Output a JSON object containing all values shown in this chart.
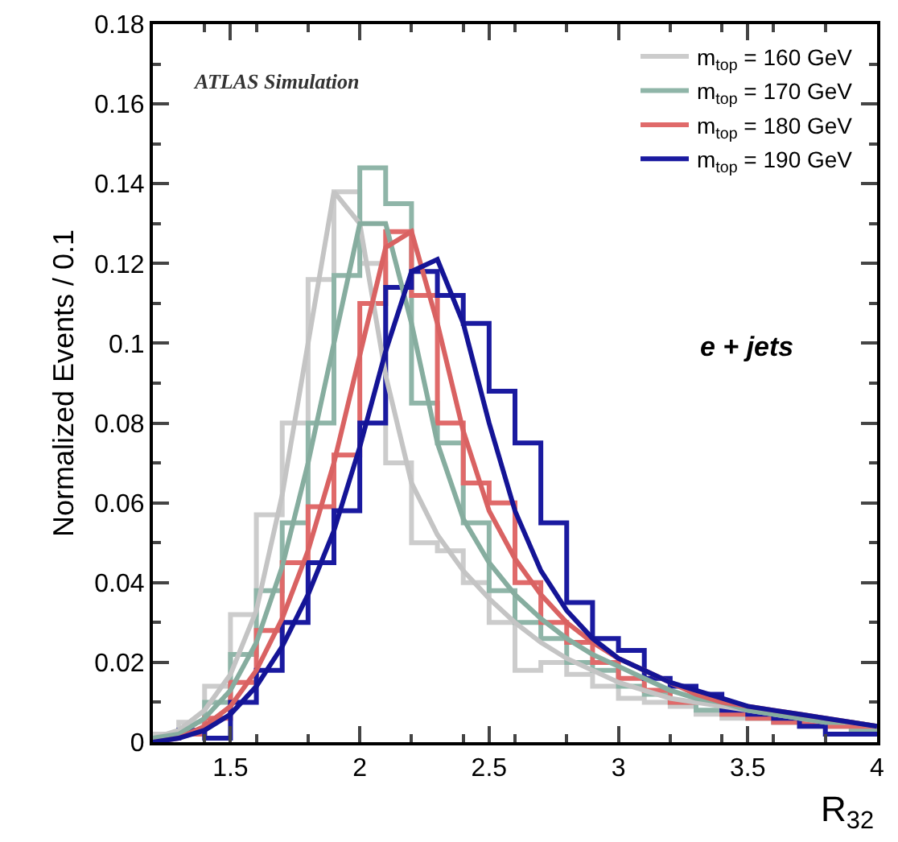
{
  "chart_data": {
    "type": "histogram",
    "xlabel": "R$_{32}$",
    "ylabel": "Normalized Events / 0.1",
    "annotations": [
      "ATLAS Simulation",
      "e + jets"
    ],
    "bins": [
      1.2,
      1.3,
      1.4,
      1.5,
      1.6,
      1.7,
      1.8,
      1.9,
      2.0,
      2.1,
      2.2,
      2.3,
      2.4,
      2.5,
      2.6,
      2.7,
      2.8,
      2.9,
      3.0,
      3.1,
      3.2,
      3.3,
      3.4,
      3.5,
      3.6,
      3.7,
      3.8,
      3.9,
      4.0
    ],
    "xlim": [
      1.2,
      4
    ],
    "xticks": [
      1.5,
      2,
      2.5,
      3,
      3.5,
      4
    ],
    "ylim": [
      0,
      0.18
    ],
    "yticks": [
      0,
      0.02,
      0.04,
      0.06,
      0.08,
      0.1,
      0.12,
      0.14,
      0.16,
      0.18
    ],
    "legend": "top right",
    "marker": "none",
    "line_style": "solid",
    "series": [
      {
        "name": "m$_{top}$ = 160 GeV",
        "color": "#cccccc",
        "values": [
          0.002,
          0.005,
          0.014,
          0.032,
          0.057,
          0.08,
          0.116,
          0.138,
          0.12,
          0.07,
          0.05,
          0.048,
          0.04,
          0.03,
          0.018,
          0.02,
          0.017,
          0.014,
          0.011,
          0.01,
          0.009,
          0.007,
          0.006,
          0.006,
          0.005,
          0.004,
          0.004,
          0.003
        ]
      },
      {
        "name": "m$_{top}$ = 170 GeV",
        "color": "#8fb5a8",
        "values": [
          0.001,
          0.003,
          0.01,
          0.022,
          0.038,
          0.055,
          0.08,
          0.117,
          0.144,
          0.135,
          0.085,
          0.075,
          0.055,
          0.038,
          0.03,
          0.026,
          0.02,
          0.018,
          0.014,
          0.012,
          0.01,
          0.008,
          0.007,
          0.006,
          0.005,
          0.005,
          0.004,
          0.003
        ]
      },
      {
        "name": "m$_{top}$ = 180 GeV",
        "color": "#e06a6a",
        "values": [
          0.001,
          0.002,
          0.006,
          0.015,
          0.028,
          0.045,
          0.059,
          0.072,
          0.11,
          0.128,
          0.112,
          0.08,
          0.065,
          0.06,
          0.04,
          0.03,
          0.025,
          0.02,
          0.016,
          0.013,
          0.01,
          0.01,
          0.007,
          0.006,
          0.005,
          0.005,
          0.004,
          0.004
        ]
      },
      {
        "name": "m$_{top}$ = 190 GeV",
        "color": "#1a1aa0",
        "values": [
          0.001,
          0.003,
          0.001,
          0.01,
          0.018,
          0.03,
          0.045,
          0.058,
          0.08,
          0.114,
          0.118,
          0.112,
          0.105,
          0.088,
          0.075,
          0.055,
          0.035,
          0.026,
          0.023,
          0.016,
          0.014,
          0.012,
          0.008,
          0.007,
          0.006,
          0.004,
          0.002,
          0.002
        ]
      },
      {
        "type": "line",
        "color": "#c4c4c4",
        "x": [
          1.2,
          1.3,
          1.4,
          1.5,
          1.6,
          1.7,
          1.8,
          1.9,
          2.0,
          2.1,
          2.2,
          2.3,
          2.4,
          2.5,
          2.6,
          2.7,
          2.8,
          2.9,
          3.0,
          3.1,
          3.2,
          3.3,
          3.4,
          3.5,
          3.6,
          3.7,
          3.8,
          3.9,
          4.0
        ],
        "values": [
          0.001,
          0.003,
          0.008,
          0.017,
          0.033,
          0.062,
          0.1,
          0.138,
          0.13,
          0.092,
          0.065,
          0.052,
          0.043,
          0.036,
          0.03,
          0.025,
          0.021,
          0.018,
          0.015,
          0.013,
          0.011,
          0.01,
          0.009,
          0.008,
          0.007,
          0.006,
          0.005,
          0.005,
          0.004
        ]
      },
      {
        "type": "line",
        "color": "#86ad9f",
        "x": [
          1.2,
          1.3,
          1.4,
          1.5,
          1.6,
          1.7,
          1.8,
          1.9,
          2.0,
          2.1,
          2.2,
          2.3,
          2.4,
          2.5,
          2.6,
          2.7,
          2.8,
          2.9,
          3.0,
          3.1,
          3.2,
          3.3,
          3.4,
          3.5,
          3.6,
          3.7,
          3.8,
          3.9,
          4.0
        ],
        "values": [
          0.001,
          0.002,
          0.006,
          0.013,
          0.025,
          0.044,
          0.07,
          0.1,
          0.13,
          0.13,
          0.105,
          0.075,
          0.056,
          0.045,
          0.037,
          0.031,
          0.026,
          0.022,
          0.019,
          0.016,
          0.013,
          0.011,
          0.01,
          0.008,
          0.007,
          0.006,
          0.005,
          0.005,
          0.004
        ]
      },
      {
        "type": "line",
        "color": "#d96262",
        "x": [
          1.2,
          1.3,
          1.4,
          1.5,
          1.6,
          1.7,
          1.8,
          1.9,
          2.0,
          2.1,
          2.2,
          2.3,
          2.4,
          2.5,
          2.6,
          2.7,
          2.8,
          2.9,
          3.0,
          3.1,
          3.2,
          3.3,
          3.4,
          3.5,
          3.6,
          3.7,
          3.8,
          3.9,
          4.0
        ],
        "values": [
          0.0,
          0.001,
          0.004,
          0.009,
          0.018,
          0.031,
          0.048,
          0.07,
          0.097,
          0.124,
          0.128,
          0.105,
          0.078,
          0.058,
          0.046,
          0.037,
          0.03,
          0.025,
          0.021,
          0.018,
          0.015,
          0.012,
          0.01,
          0.009,
          0.008,
          0.007,
          0.006,
          0.005,
          0.004
        ]
      },
      {
        "type": "line",
        "color": "#141496",
        "x": [
          1.2,
          1.3,
          1.4,
          1.5,
          1.6,
          1.7,
          1.8,
          1.9,
          2.0,
          2.1,
          2.2,
          2.3,
          2.4,
          2.5,
          2.6,
          2.7,
          2.8,
          2.9,
          3.0,
          3.1,
          3.2,
          3.3,
          3.4,
          3.5,
          3.6,
          3.7,
          3.8,
          3.9,
          4.0
        ],
        "values": [
          0.0,
          0.001,
          0.003,
          0.007,
          0.014,
          0.024,
          0.037,
          0.053,
          0.074,
          0.098,
          0.118,
          0.121,
          0.105,
          0.08,
          0.058,
          0.043,
          0.033,
          0.026,
          0.021,
          0.018,
          0.015,
          0.013,
          0.011,
          0.009,
          0.008,
          0.007,
          0.006,
          0.005,
          0.004
        ]
      }
    ]
  }
}
